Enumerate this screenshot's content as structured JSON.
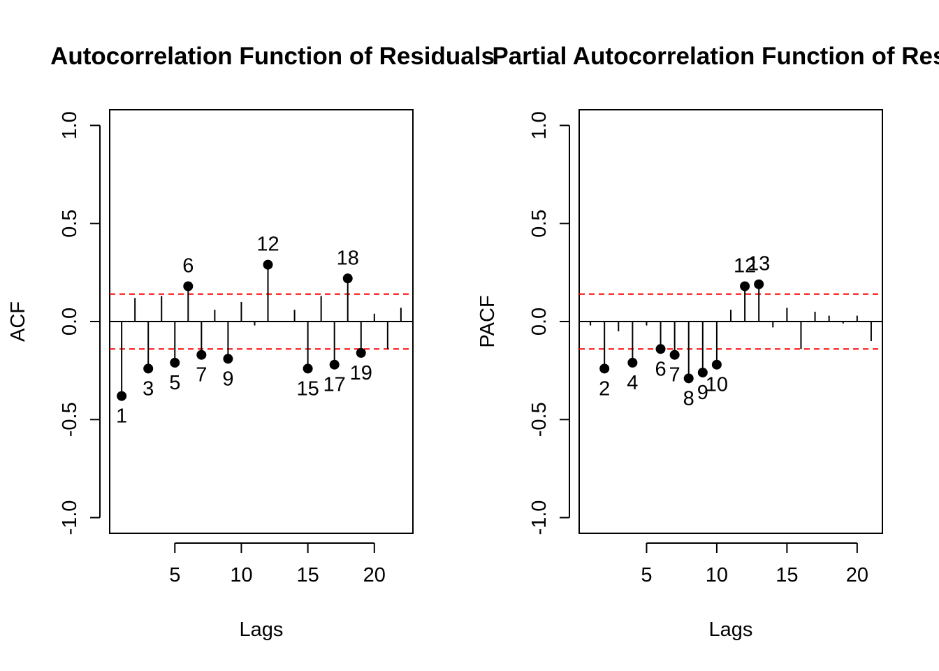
{
  "chart_data": [
    {
      "type": "stem",
      "title": "Autocorrelation Function of Residuals",
      "xlabel": "Lags",
      "ylabel": "ACF",
      "xlim": [
        0.1,
        22.9
      ],
      "ylim": [
        -1.08,
        1.08
      ],
      "xticks": [
        5,
        10,
        15,
        20
      ],
      "yticks": [
        -1.0,
        -0.5,
        0.0,
        0.5,
        1.0
      ],
      "ytick_labels": [
        "-1.0",
        "-0.5",
        "0.0",
        "0.5",
        "1.0"
      ],
      "confidence_bound": 0.14,
      "confidence_color": "#ff0000",
      "lags": [
        1,
        2,
        3,
        4,
        5,
        6,
        7,
        8,
        9,
        10,
        11,
        12,
        13,
        14,
        15,
        16,
        17,
        18,
        19,
        20,
        21,
        22
      ],
      "values": [
        -0.38,
        0.12,
        -0.24,
        0.13,
        -0.21,
        0.18,
        -0.17,
        0.06,
        -0.19,
        0.1,
        -0.02,
        0.29,
        0.0,
        0.06,
        -0.24,
        0.13,
        -0.22,
        0.22,
        -0.16,
        0.04,
        -0.14,
        0.07
      ],
      "significant_lags": [
        1,
        3,
        5,
        6,
        7,
        9,
        12,
        15,
        17,
        18,
        19
      ]
    },
    {
      "type": "stem",
      "title": "Partial Autocorrelation Function of Residuals",
      "xlabel": "Lags",
      "ylabel": "PACF",
      "xlim": [
        0.2,
        21.8
      ],
      "ylim": [
        -1.08,
        1.08
      ],
      "xticks": [
        5,
        10,
        15,
        20
      ],
      "yticks": [
        -1.0,
        -0.5,
        0.0,
        0.5,
        1.0
      ],
      "ytick_labels": [
        "-1.0",
        "-0.5",
        "0.0",
        "0.5",
        "1.0"
      ],
      "confidence_bound": 0.14,
      "confidence_color": "#ff0000",
      "lags": [
        1,
        2,
        3,
        4,
        5,
        6,
        7,
        8,
        9,
        10,
        11,
        12,
        13,
        14,
        15,
        16,
        17,
        18,
        19,
        20,
        21
      ],
      "values": [
        -0.02,
        -0.24,
        -0.05,
        -0.21,
        -0.02,
        -0.14,
        -0.17,
        -0.29,
        -0.26,
        -0.22,
        0.06,
        0.18,
        0.19,
        -0.03,
        0.07,
        -0.14,
        0.05,
        0.03,
        -0.01,
        0.03,
        -0.1
      ],
      "significant_lags": [
        2,
        4,
        6,
        7,
        8,
        9,
        10,
        12,
        13
      ]
    }
  ]
}
